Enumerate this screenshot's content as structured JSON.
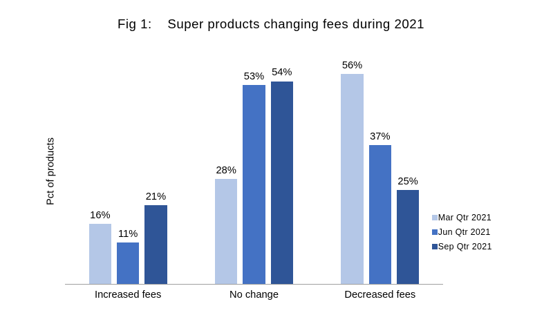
{
  "chart_data": {
    "type": "bar",
    "title": "Fig 1:    Super products changing fees during 2021",
    "ylabel": "Pct of products",
    "xlabel": "",
    "categories": [
      "Increased fees",
      "No change",
      "Decreased fees"
    ],
    "series": [
      {
        "name": "Mar Qtr 2021",
        "color": "#b4c7e7",
        "values": [
          16,
          28,
          56
        ]
      },
      {
        "name": "Jun Qtr 2021",
        "color": "#4472c4",
        "values": [
          11,
          53,
          37
        ]
      },
      {
        "name": "Sep Qtr 2021",
        "color": "#2f5597",
        "values": [
          21,
          54,
          25
        ]
      }
    ],
    "data_label_suffix": "%",
    "ylim": [
      0,
      60
    ],
    "grid": false,
    "legend_position": "right",
    "axis_line_color": "#a6a6a6",
    "text_color": "#000000",
    "background_color": "#ffffff"
  }
}
